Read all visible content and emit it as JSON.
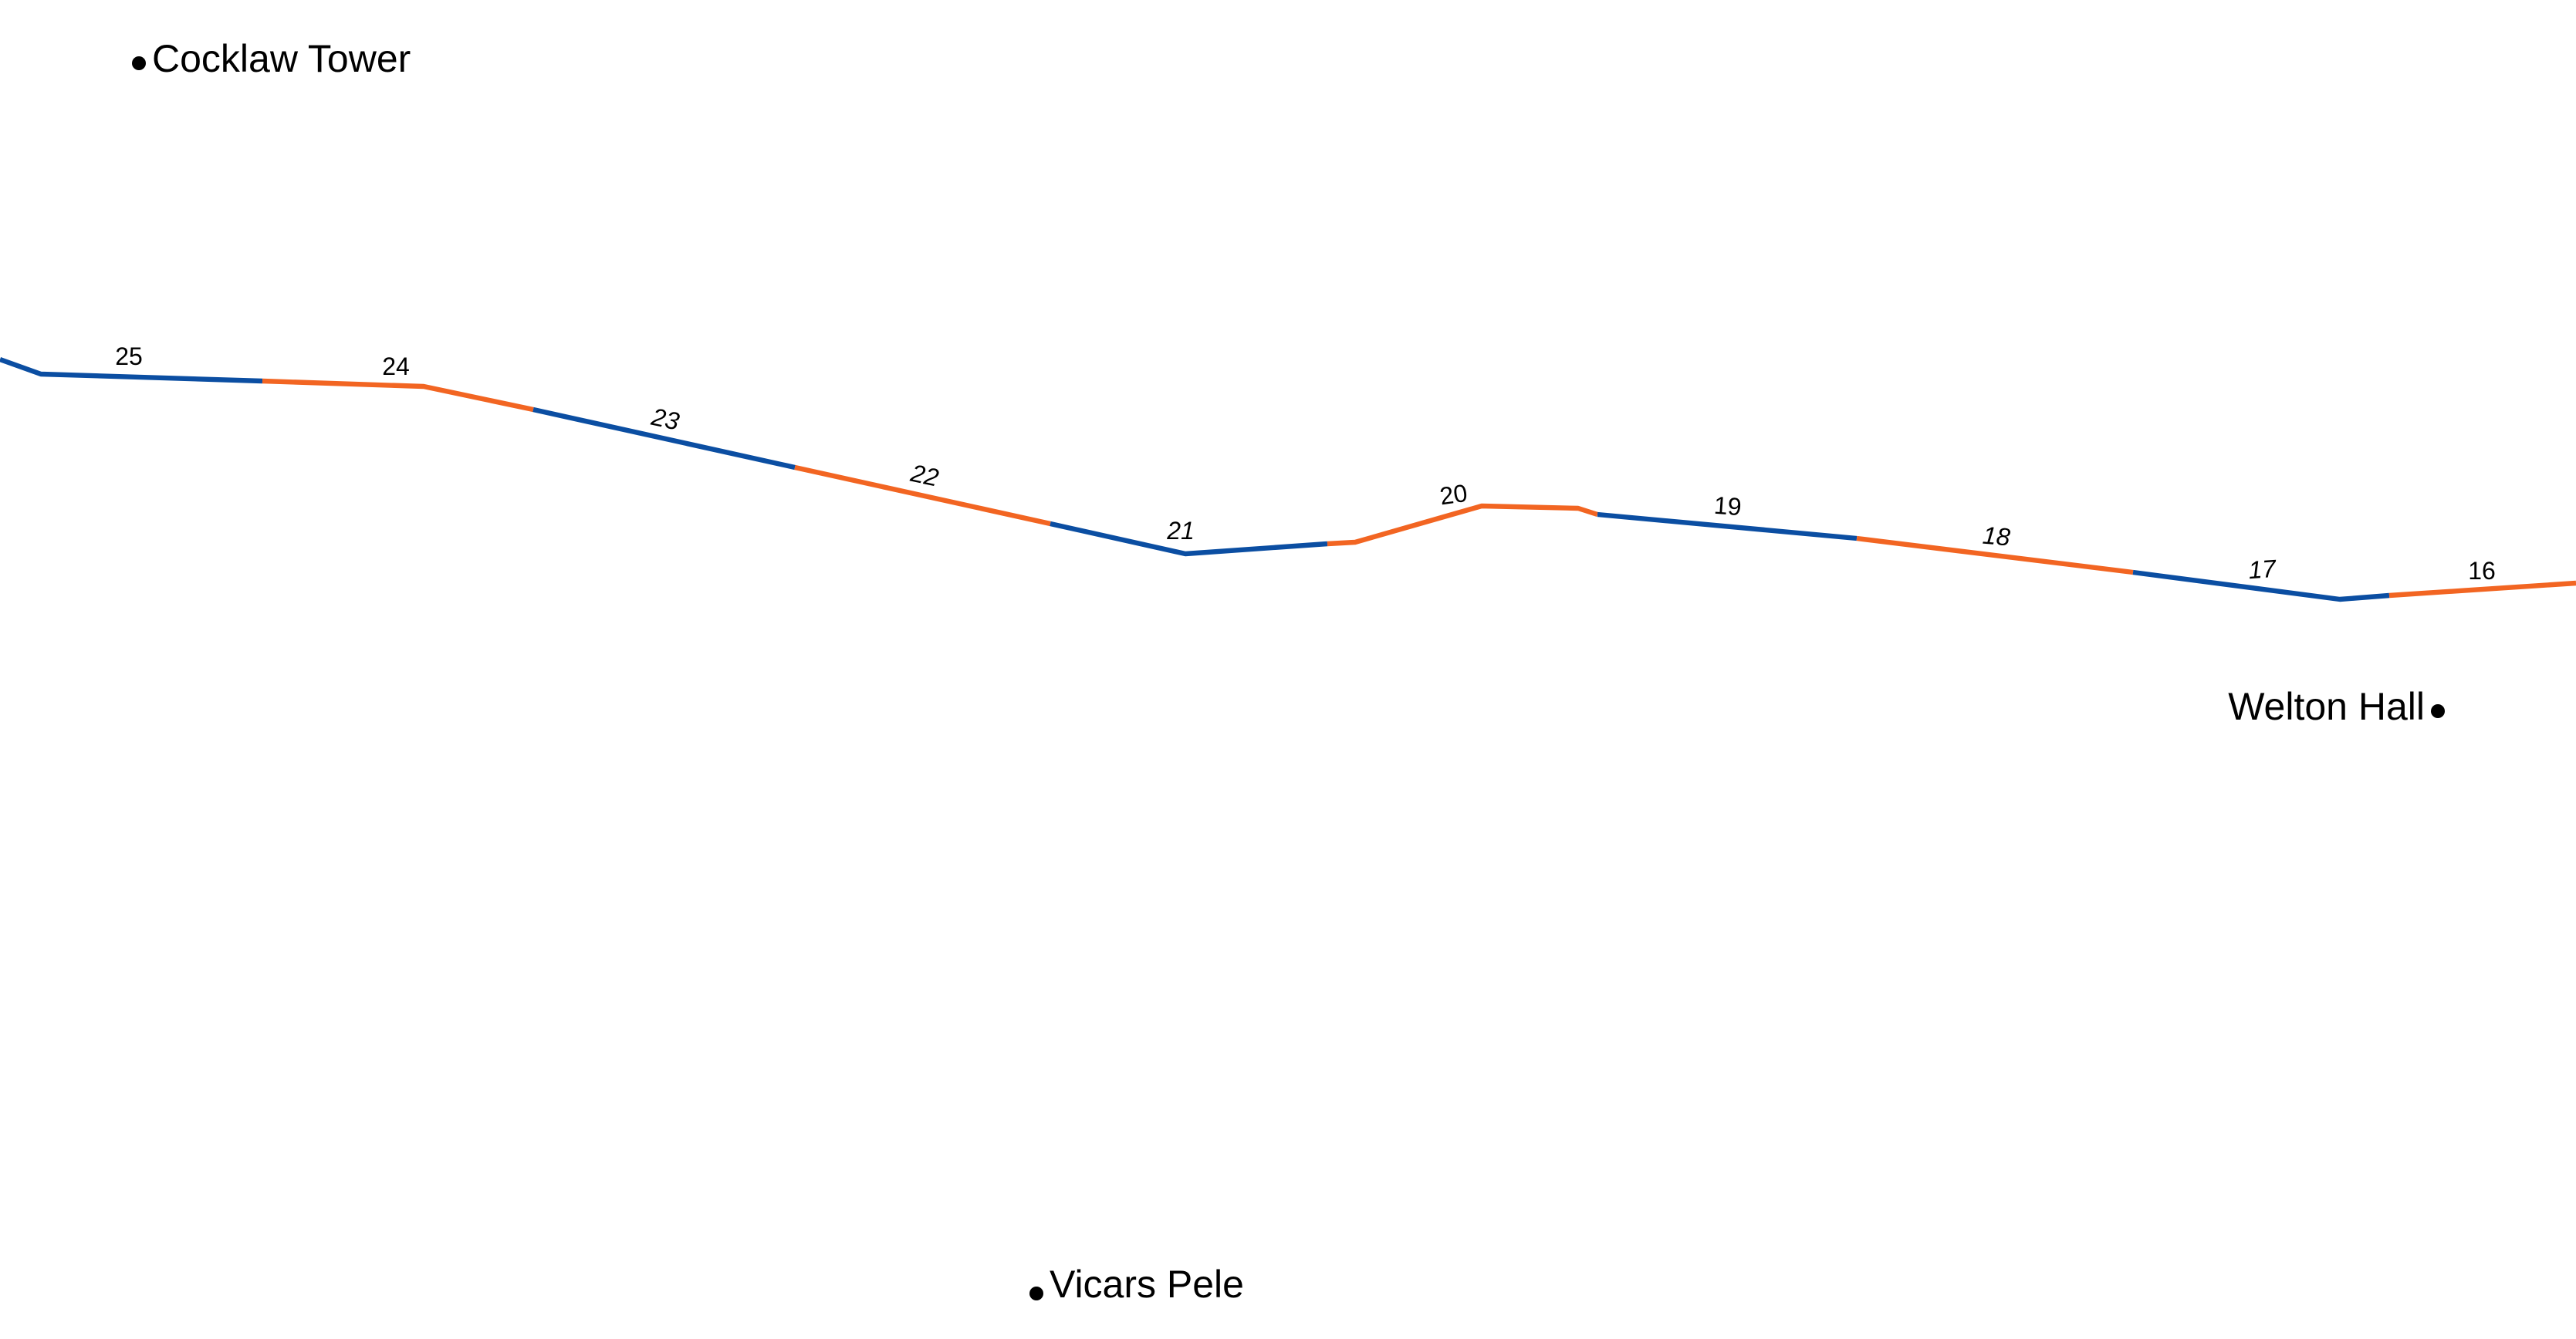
{
  "map": {
    "colors": {
      "segment_blue": "#0B4EA2",
      "segment_orange": "#F26522",
      "text": "#000000",
      "background": "#FFFFFF"
    },
    "places": [
      {
        "id": "cocklaw-tower",
        "name": "Cocklaw Tower"
      },
      {
        "id": "welton-hall",
        "name": "Welton Hall"
      },
      {
        "id": "vicars-pele",
        "name": "Vicars Pele"
      }
    ],
    "sections": [
      {
        "number": "25",
        "color": "blue"
      },
      {
        "number": "24",
        "color": "orange"
      },
      {
        "number": "23",
        "color": "blue"
      },
      {
        "number": "22",
        "color": "orange"
      },
      {
        "number": "21",
        "color": "blue"
      },
      {
        "number": "20",
        "color": "orange"
      },
      {
        "number": "19",
        "color": "blue"
      },
      {
        "number": "18",
        "color": "orange"
      },
      {
        "number": "17",
        "color": "blue"
      },
      {
        "number": "16",
        "color": "orange"
      }
    ]
  }
}
